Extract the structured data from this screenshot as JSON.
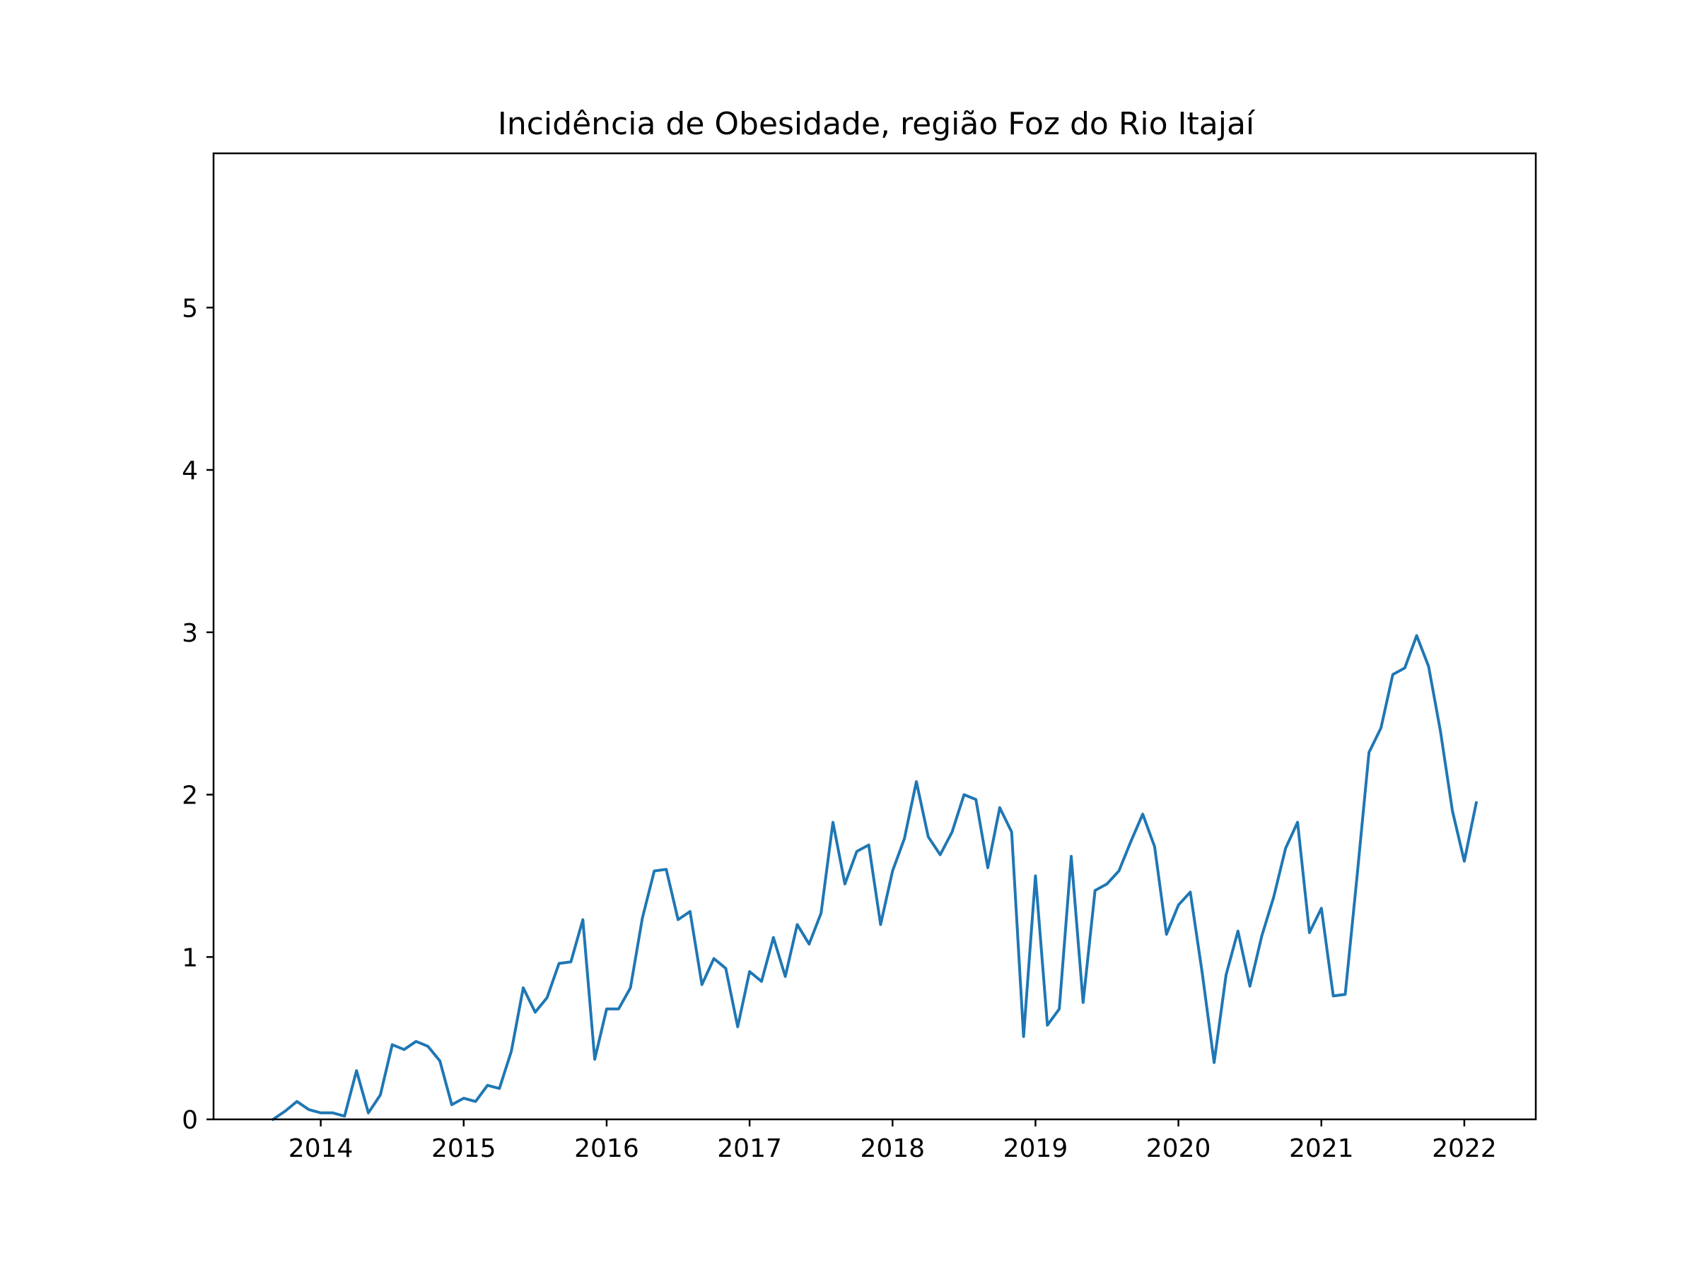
{
  "chart_data": {
    "type": "line",
    "title": "Incidência de Obesidade, região Foz do Rio Itajaí",
    "xlabel": "",
    "ylabel": "",
    "xlim": [
      "2013-04",
      "2022-07"
    ],
    "ylim": [
      0,
      5.95
    ],
    "x_ticks": [
      "2014",
      "2015",
      "2016",
      "2017",
      "2018",
      "2019",
      "2020",
      "2021",
      "2022"
    ],
    "y_ticks": [
      0,
      1,
      2,
      3,
      4,
      5
    ],
    "grid": false,
    "legend": "none",
    "color": "#1f77b4",
    "series": [
      {
        "x": [
          "2013-09",
          "2013-10",
          "2013-11",
          "2013-12",
          "2014-01",
          "2014-02",
          "2014-03",
          "2014-04",
          "2014-05",
          "2014-06",
          "2014-07",
          "2014-08",
          "2014-09",
          "2014-10",
          "2014-11",
          "2014-12",
          "2015-01",
          "2015-02",
          "2015-03",
          "2015-04",
          "2015-05",
          "2015-06",
          "2015-07",
          "2015-08",
          "2015-09",
          "2015-10",
          "2015-11",
          "2015-12",
          "2016-01",
          "2016-02",
          "2016-03",
          "2016-04",
          "2016-05",
          "2016-06",
          "2016-07",
          "2016-08",
          "2016-09",
          "2016-10",
          "2016-11",
          "2016-12",
          "2017-01",
          "2017-02",
          "2017-03",
          "2017-04",
          "2017-05",
          "2017-06",
          "2017-07",
          "2017-08",
          "2017-09",
          "2017-10",
          "2017-11",
          "2017-12",
          "2018-01",
          "2018-02",
          "2018-03",
          "2018-04",
          "2018-05",
          "2018-06",
          "2018-07",
          "2018-08",
          "2018-09",
          "2018-10",
          "2018-11",
          "2018-12",
          "2019-01",
          "2019-02",
          "2019-03",
          "2019-04",
          "2019-05",
          "2019-06",
          "2019-07",
          "2019-08",
          "2019-09",
          "2019-10",
          "2019-11",
          "2019-12",
          "2020-01",
          "2020-02",
          "2020-03",
          "2020-04",
          "2020-05",
          "2020-06",
          "2020-07",
          "2020-08",
          "2020-09",
          "2020-10",
          "2020-11",
          "2020-12",
          "2021-01",
          "2021-02",
          "2021-03",
          "2021-04",
          "2021-05",
          "2021-06",
          "2021-07",
          "2021-08",
          "2021-09",
          "2021-10",
          "2021-11",
          "2021-12",
          "2022-01",
          "2022-02"
        ],
        "values": [
          0.0,
          0.05,
          0.11,
          0.06,
          0.04,
          0.04,
          0.02,
          0.3,
          0.04,
          0.15,
          0.46,
          0.43,
          0.48,
          0.45,
          0.36,
          0.09,
          0.13,
          0.11,
          0.21,
          0.19,
          0.42,
          0.81,
          0.66,
          0.75,
          0.96,
          0.97,
          1.23,
          0.37,
          0.68,
          0.68,
          0.81,
          1.24,
          1.53,
          1.54,
          1.23,
          1.28,
          0.83,
          0.99,
          0.93,
          0.57,
          0.91,
          0.85,
          1.12,
          0.88,
          1.2,
          1.08,
          1.27,
          1.83,
          1.45,
          1.65,
          1.69,
          1.2,
          1.53,
          1.73,
          2.08,
          1.74,
          1.63,
          1.77,
          2.0,
          1.97,
          1.55,
          1.92,
          1.77,
          0.51,
          1.5,
          0.58,
          0.68,
          1.62,
          0.72,
          1.41,
          1.45,
          1.53,
          1.71,
          1.88,
          1.68,
          1.14,
          1.32,
          1.4,
          0.9,
          0.35,
          0.89,
          1.16,
          0.82,
          1.13,
          1.37,
          1.67,
          1.83,
          1.15,
          1.3,
          0.76,
          0.77,
          1.5,
          2.26,
          2.41,
          2.74,
          2.78,
          2.98,
          2.79,
          2.39,
          1.9,
          1.59,
          1.95
        ]
      }
    ]
  }
}
